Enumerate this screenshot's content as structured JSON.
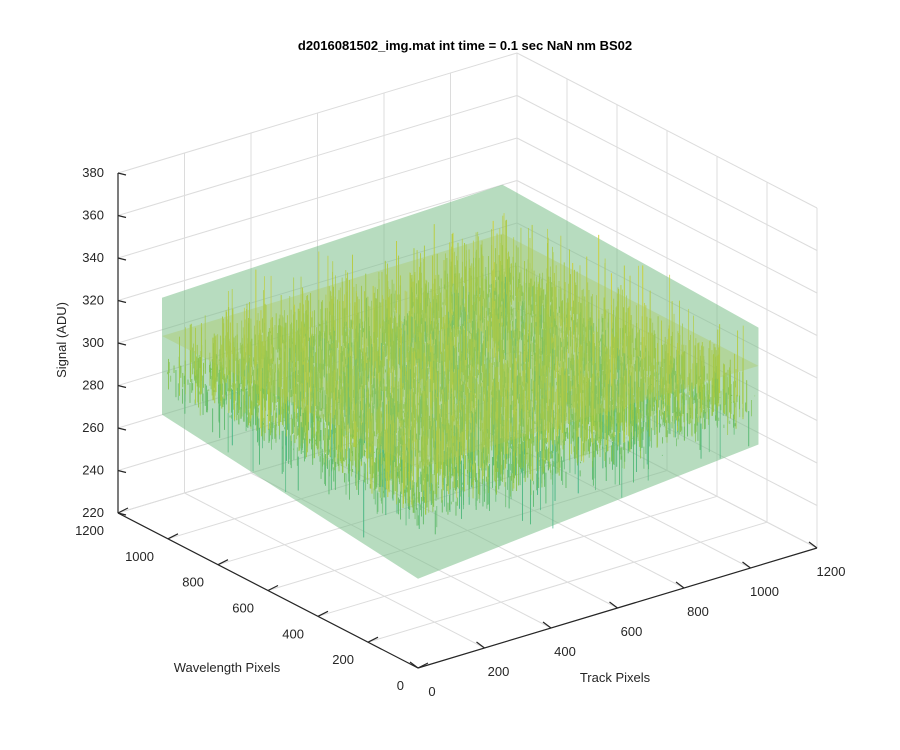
{
  "chart_data": {
    "type": "surface",
    "title": "d2016081502_img.mat int time = 0.1 sec  NaN nm BS02",
    "xlabel": "Track Pixels",
    "ylabel": "Wavelength Pixels",
    "zlabel": "Signal (ADU)",
    "xlim": [
      0,
      1200
    ],
    "ylim": [
      0,
      1200
    ],
    "zlim": [
      220,
      380
    ],
    "x_ticks": [
      "0",
      "200",
      "400",
      "600",
      "800",
      "1000",
      "1200"
    ],
    "y_ticks": [
      "0",
      "200",
      "400",
      "600",
      "800",
      "1000",
      "1200"
    ],
    "z_ticks": [
      "220",
      "240",
      "260",
      "280",
      "300",
      "320",
      "340",
      "360",
      "380"
    ],
    "surface": {
      "x_range": [
        0,
        1024
      ],
      "y_range": [
        0,
        1024
      ],
      "mean_signal": 302,
      "noise_range": [
        240,
        360
      ]
    },
    "colormap": "parula",
    "grid": true
  }
}
